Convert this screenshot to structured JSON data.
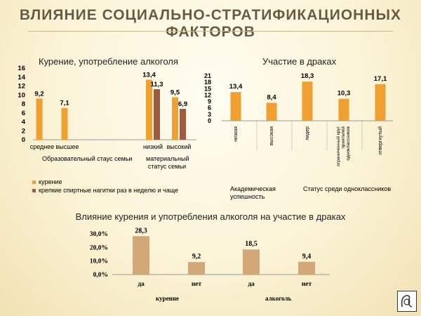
{
  "page": {
    "title": "ВЛИЯНИЕ СОЦИАЛЬНО-СТРАТИФИКАЦИОННЫХ ФАКТОРОВ"
  },
  "colors": {
    "smoking": "#f0a030",
    "alcohol": "#a05a40",
    "bar3": "#d2a878",
    "axis": "#999999"
  },
  "chart_data": [
    {
      "type": "bar",
      "title": "Курение, употребление алкоголя",
      "categories": [
        "среднее",
        "высшее",
        "низкий",
        "высокий"
      ],
      "category_groups": [
        "Образовательный стаус семьи",
        "материальный статус семьи"
      ],
      "ylim": [
        0,
        16
      ],
      "yticks": [
        "16",
        "14",
        "12",
        "10",
        "8",
        "6",
        "4",
        "2",
        "0"
      ],
      "series": [
        {
          "name": "курение",
          "values": [
            9.2,
            7.1,
            13.4,
            9.5
          ],
          "labels": [
            "9,2",
            "7,1",
            "13,4",
            "9,5"
          ]
        },
        {
          "name": "крепкие спиртные нагитки раз в неделю и чаще",
          "values": [
            null,
            null,
            11.3,
            6.9
          ],
          "labels": [
            "",
            "",
            "11,3",
            "6,9"
          ]
        }
      ],
      "legend": "bottom-left"
    },
    {
      "type": "bar",
      "title": "Участие в драках",
      "categories": [
        "низкая",
        "высокая",
        "лидер",
        "ограниченный круг приятелей одноклассников",
        "отвергнутый"
      ],
      "category_groups": [
        "Академическая успешность",
        "Статус среди одноклассников"
      ],
      "ylim": [
        0,
        21
      ],
      "yticks": [
        "21",
        "18",
        "15",
        "12",
        "9",
        "6",
        "3",
        "0"
      ],
      "values": [
        13.4,
        8.4,
        18.3,
        10.3,
        17.1
      ],
      "labels": [
        "13,4",
        "8,4",
        "18,3",
        "10,3",
        "17,1"
      ]
    },
    {
      "type": "bar",
      "title": "Влияние курения и употребления алкоголя на участие в драках",
      "categories": [
        "да",
        "нет",
        "да",
        "нет"
      ],
      "category_groups": [
        "курение",
        "алкоголь"
      ],
      "ylim": [
        0,
        30
      ],
      "yticks": [
        "30,0%",
        "20,0%",
        "10,0%",
        "0,0%"
      ],
      "values": [
        28.3,
        9.2,
        18.5,
        9.4
      ],
      "labels": [
        "28,3",
        "9,2",
        "18,5",
        "9,4"
      ]
    }
  ]
}
